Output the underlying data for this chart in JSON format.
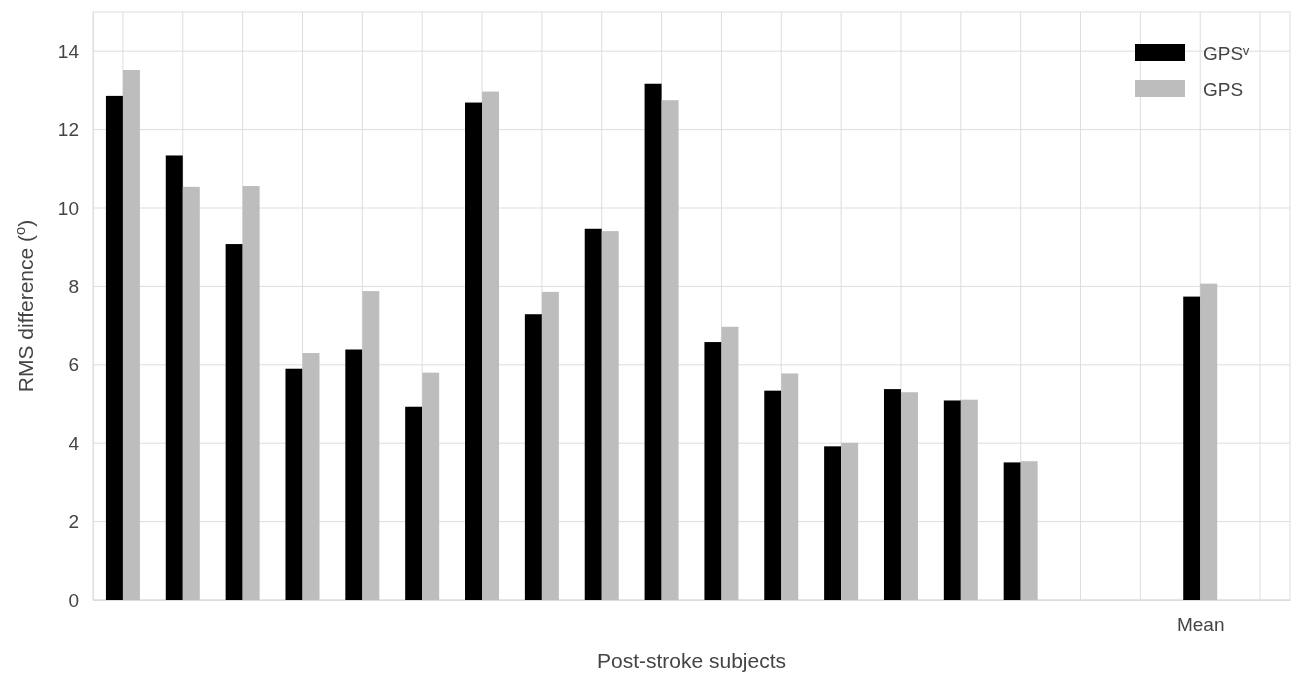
{
  "chart_data": {
    "type": "bar",
    "xlabel": "Post-stroke subjects",
    "ylabel": "RMS difference ($^{o}$)",
    "categories": [
      null,
      null,
      null,
      null,
      null,
      null,
      null,
      null,
      null,
      null,
      null,
      null,
      null,
      null,
      null,
      null,
      null,
      null,
      "Mean",
      null
    ],
    "series": [
      {
        "name": "GPSᵛ",
        "color": "#000000",
        "values": [
          12.86,
          11.34,
          9.08,
          5.9,
          6.39,
          4.93,
          12.69,
          7.29,
          9.47,
          13.17,
          6.58,
          5.34,
          3.92,
          5.38,
          5.09,
          3.51,
          null,
          null,
          7.74,
          null
        ]
      },
      {
        "name": "GPS",
        "color": "#bdbdbd",
        "values": [
          13.52,
          10.54,
          10.56,
          6.3,
          7.88,
          5.8,
          12.97,
          7.86,
          9.41,
          12.75,
          6.97,
          5.78,
          4.01,
          5.3,
          5.11,
          3.54,
          null,
          null,
          8.07,
          null
        ]
      }
    ],
    "ylim": [
      0,
      15
    ],
    "yticks": [
      0,
      2,
      4,
      6,
      8,
      10,
      12,
      14
    ],
    "grid": true,
    "legend": "top right"
  }
}
